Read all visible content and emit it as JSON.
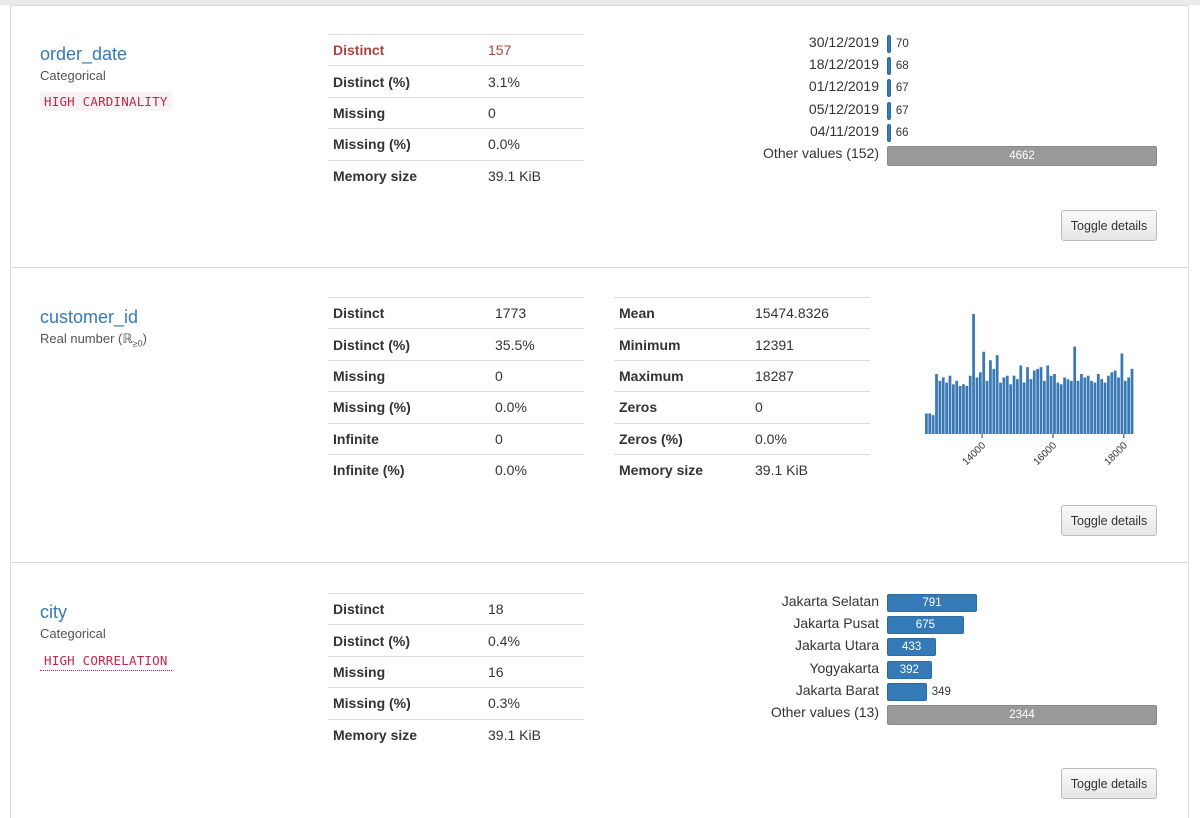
{
  "variables": [
    {
      "name": "order_date",
      "type": "Categorical",
      "warning": "HIGH CARDINALITY",
      "stats": [
        {
          "label": "Distinct",
          "value": "157",
          "alert": true
        },
        {
          "label": "Distinct (%)",
          "value": "3.1%"
        },
        {
          "label": "Missing",
          "value": "0"
        },
        {
          "label": "Missing (%)",
          "value": "0.0%"
        },
        {
          "label": "Memory size",
          "value": "39.1 KiB"
        }
      ],
      "freq": [
        {
          "label": "30/12/2019",
          "count": 70
        },
        {
          "label": "18/12/2019",
          "count": 68
        },
        {
          "label": "01/12/2019",
          "count": 67
        },
        {
          "label": "05/12/2019",
          "count": 67
        },
        {
          "label": "04/11/2019",
          "count": 66
        }
      ],
      "other": {
        "label": "Other values (152)",
        "count": 4662
      },
      "toggle_label": "Toggle details"
    },
    {
      "name": "customer_id",
      "type_main": "Real number (",
      "type_symbol": "ℝ",
      "type_sub": "≥0",
      "type_close": ")",
      "stats_left": [
        {
          "label": "Distinct",
          "value": "1773"
        },
        {
          "label": "Distinct (%)",
          "value": "35.5%"
        },
        {
          "label": "Missing",
          "value": "0"
        },
        {
          "label": "Missing (%)",
          "value": "0.0%"
        },
        {
          "label": "Infinite",
          "value": "0"
        },
        {
          "label": "Infinite (%)",
          "value": "0.0%"
        }
      ],
      "stats_right": [
        {
          "label": "Mean",
          "value": "15474.8326"
        },
        {
          "label": "Minimum",
          "value": "12391"
        },
        {
          "label": "Maximum",
          "value": "18287"
        },
        {
          "label": "Zeros",
          "value": "0"
        },
        {
          "label": "Zeros (%)",
          "value": "0.0%"
        },
        {
          "label": "Memory size",
          "value": "39.1 KiB"
        }
      ],
      "toggle_label": "Toggle details"
    },
    {
      "name": "city",
      "type": "Categorical",
      "warning": "HIGH CORRELATION",
      "stats": [
        {
          "label": "Distinct",
          "value": "18"
        },
        {
          "label": "Distinct (%)",
          "value": "0.4%"
        },
        {
          "label": "Missing",
          "value": "16"
        },
        {
          "label": "Missing (%)",
          "value": "0.3%"
        },
        {
          "label": "Memory size",
          "value": "39.1 KiB"
        }
      ],
      "freq": [
        {
          "label": "Jakarta Selatan",
          "count": 791
        },
        {
          "label": "Jakarta Pusat",
          "count": 675
        },
        {
          "label": "Jakarta Utara",
          "count": 433
        },
        {
          "label": "Yogyakarta",
          "count": 392
        },
        {
          "label": "Jakarta Barat",
          "count": 349
        }
      ],
      "other": {
        "label": "Other values (13)",
        "count": 2344
      },
      "toggle_label": "Toggle details"
    }
  ],
  "chart_data": {
    "type": "bar",
    "xlabel": "",
    "ylabel": "",
    "x_ticks": [
      "14000",
      "16000",
      "18000"
    ],
    "xlim": [
      12391,
      18287
    ],
    "values": [
      12,
      12,
      11,
      35,
      31,
      33,
      30,
      34,
      29,
      31,
      28,
      29,
      28,
      34,
      70,
      33,
      36,
      48,
      31,
      43,
      38,
      46,
      30,
      33,
      34,
      29,
      34,
      32,
      40,
      30,
      39,
      32,
      37,
      38,
      39,
      31,
      40,
      34,
      35,
      30,
      29,
      33,
      32,
      31,
      51,
      31,
      35,
      33,
      34,
      31,
      30,
      35,
      32,
      30,
      34,
      36,
      37,
      33,
      47,
      31,
      33,
      38
    ]
  },
  "colors": {
    "accent": "#337ab7",
    "alert": "#a94442",
    "warning_text": "#c7254e",
    "other_bar": "#999999"
  }
}
